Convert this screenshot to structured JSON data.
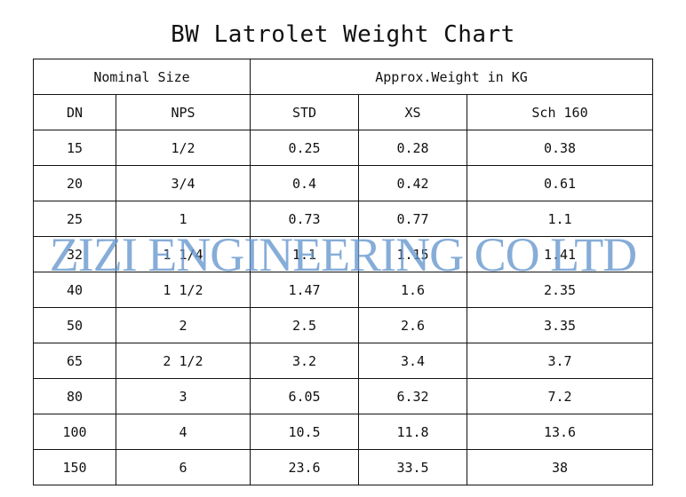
{
  "title": "BW Latrolet Weight Chart",
  "header": {
    "group_left": "Nominal Size",
    "group_right": "Approx.Weight in KG",
    "columns": [
      "DN",
      "NPS",
      "STD",
      "XS",
      "Sch 160"
    ]
  },
  "rows": [
    [
      "15",
      "1/2",
      "0.25",
      "0.28",
      "0.38"
    ],
    [
      "20",
      "3/4",
      "0.4",
      "0.42",
      "0.61"
    ],
    [
      "25",
      "1",
      "0.73",
      "0.77",
      "1.1"
    ],
    [
      "32",
      "1 1/4",
      "1.1",
      "1.15",
      "1.41"
    ],
    [
      "40",
      "1 1/2",
      "1.47",
      "1.6",
      "2.35"
    ],
    [
      "50",
      "2",
      "2.5",
      "2.6",
      "3.35"
    ],
    [
      "65",
      "2 1/2",
      "3.2",
      "3.4",
      "3.7"
    ],
    [
      "80",
      "3",
      "6.05",
      "6.32",
      "7.2"
    ],
    [
      "100",
      "4",
      "10.5",
      "11.8",
      "13.6"
    ],
    [
      "150",
      "6",
      "23.6",
      "33.5",
      "38"
    ]
  ],
  "watermark": "ZIZI ENGINEERING CO LTD"
}
